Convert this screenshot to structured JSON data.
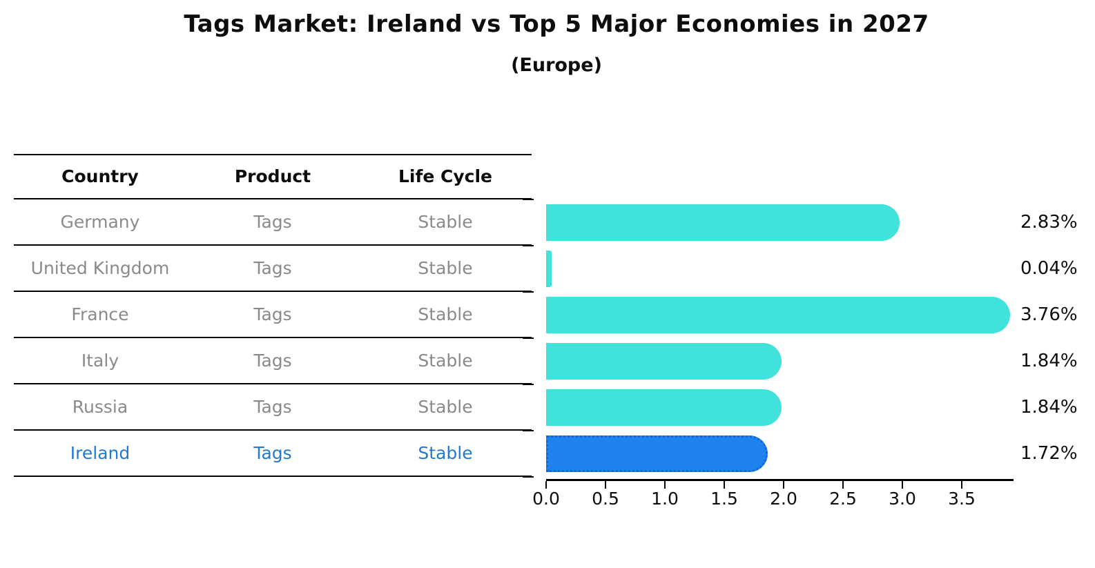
{
  "title": "Tags Market: Ireland vs Top 5 Major Economies in 2027",
  "subtitle": "(Europe)",
  "table": {
    "headers": [
      "Country",
      "Product",
      "Life Cycle"
    ],
    "rows": [
      {
        "country": "Germany",
        "product": "Tags",
        "life_cycle": "Stable",
        "highlighted": false
      },
      {
        "country": "United Kingdom",
        "product": "Tags",
        "life_cycle": "Stable",
        "highlighted": false
      },
      {
        "country": "France",
        "product": "Tags",
        "life_cycle": "Stable",
        "highlighted": false
      },
      {
        "country": "Italy",
        "product": "Tags",
        "life_cycle": "Stable",
        "highlighted": false
      },
      {
        "country": "Russia",
        "product": "Tags",
        "life_cycle": "Stable",
        "highlighted": false
      },
      {
        "country": "Ireland",
        "product": "Tags",
        "life_cycle": "Stable",
        "highlighted": true
      }
    ]
  },
  "chart_data": {
    "type": "bar",
    "orientation": "horizontal",
    "title": "Tags Market: Ireland vs Top 5 Major Economies in 2027",
    "subtitle": "(Europe)",
    "categories": [
      "Germany",
      "United Kingdom",
      "France",
      "Italy",
      "Russia",
      "Ireland"
    ],
    "values": [
      2.83,
      0.04,
      3.76,
      1.84,
      1.84,
      1.72
    ],
    "value_labels": [
      "2.83%",
      "0.04%",
      "3.76%",
      "1.84%",
      "1.84%",
      "1.72%"
    ],
    "x_ticks": [
      "0.0",
      "0.5",
      "1.0",
      "1.5",
      "2.0",
      "2.5",
      "3.0",
      "3.5"
    ],
    "x_tick_values": [
      0.0,
      0.5,
      1.0,
      1.5,
      2.0,
      2.5,
      3.0,
      3.5
    ],
    "xlim": [
      0,
      3.94
    ],
    "grid": false,
    "legend": "none",
    "highlight_index": 5
  },
  "colors": {
    "bar": "#41E1DC",
    "highlight_bar": "#1E82F0",
    "highlight_bar_border": "#1565D8",
    "highlight_text": "#2478CE",
    "table_text": "#8a8a8a",
    "header_text": "#0d0d0d",
    "value_text": "#0d0d0d",
    "line": "#000000"
  }
}
